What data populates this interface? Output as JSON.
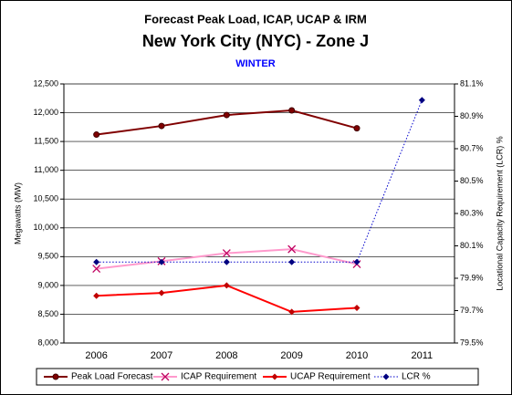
{
  "chart_data": {
    "type": "line",
    "title": "Forecast Peak Load, ICAP, UCAP & IRM",
    "subtitle": "New York City (NYC) - Zone J",
    "season": "WINTER",
    "ylabel": "Megawatts (MW)",
    "y2label": "Locational Capacity Requirement (LCR) %",
    "categories": [
      "2006",
      "2007",
      "2008",
      "2009",
      "2010",
      "2011"
    ],
    "series": [
      {
        "name": "Peak Load Forecast",
        "color": "#800000",
        "marker": "circle",
        "dash": "solid",
        "values": [
          11620,
          11770,
          11960,
          12040,
          11730,
          null
        ]
      },
      {
        "name": "ICAP Requirement",
        "color": "#ff99cc",
        "marker": "x",
        "dash": "solid",
        "values": [
          9290,
          9420,
          9560,
          9630,
          9370,
          null
        ]
      },
      {
        "name": "UCAP Requirement",
        "color": "#ff0000",
        "marker": "diamond",
        "dash": "solid",
        "values": [
          8820,
          8870,
          9000,
          8540,
          8610,
          null
        ]
      },
      {
        "name": "LCR %",
        "color": "#0000cc",
        "marker": "diamond",
        "dash": "dotted",
        "axis": "y2",
        "values": [
          80.0,
          80.0,
          80.0,
          80.0,
          80.0,
          81.0
        ]
      }
    ],
    "ylim": [
      8000,
      12500
    ],
    "yticks": [
      {
        "value": 8000,
        "label": "8,000"
      },
      {
        "value": 8500,
        "label": "8,500"
      },
      {
        "value": 9000,
        "label": "9,000"
      },
      {
        "value": 9500,
        "label": "9,500"
      },
      {
        "value": 10000,
        "label": "10,000"
      },
      {
        "value": 10500,
        "label": "10,500"
      },
      {
        "value": 11000,
        "label": "11,000"
      },
      {
        "value": 11500,
        "label": "11,500"
      },
      {
        "value": 12000,
        "label": "12,000"
      },
      {
        "value": 12500,
        "label": "12,500"
      }
    ],
    "y2lim": [
      79.5,
      81.1
    ],
    "y2ticks": [
      {
        "value": 79.5,
        "label": "79.5%"
      },
      {
        "value": 79.7,
        "label": "79.7%"
      },
      {
        "value": 79.9,
        "label": "79.9%"
      },
      {
        "value": 80.1,
        "label": "80.1%"
      },
      {
        "value": 80.3,
        "label": "80.3%"
      },
      {
        "value": 80.5,
        "label": "80.5%"
      },
      {
        "value": 80.7,
        "label": "80.7%"
      },
      {
        "value": 80.9,
        "label": "80.9%"
      },
      {
        "value": 81.1,
        "label": "81.1%"
      }
    ],
    "grid": true,
    "legend": "bottom"
  }
}
